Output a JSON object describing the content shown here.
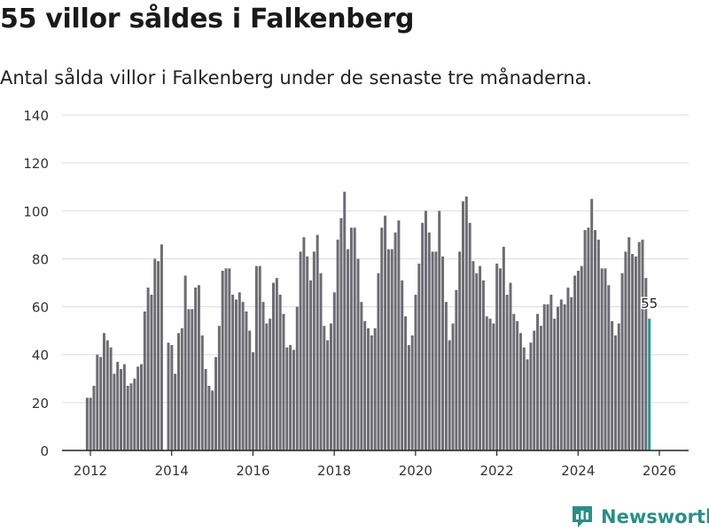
{
  "header": {
    "title": "55 villor såldes i Falkenberg",
    "subtitle": "Antal sålda villor i Falkenberg under de senaste tre månaderna."
  },
  "brand": {
    "name": "Newsworthy",
    "color": "#2a8f8a",
    "icon": "newsworthy-logo-icon"
  },
  "chart_data": {
    "type": "bar",
    "title": "55 villor såldes i Falkenberg",
    "subtitle": "Antal sålda villor i Falkenberg under de senaste tre månaderna.",
    "xlabel": "",
    "ylabel": "",
    "ylim": [
      0,
      140
    ],
    "yticks": [
      0,
      20,
      40,
      60,
      80,
      100,
      120,
      140
    ],
    "xticks": [
      "2012",
      "2014",
      "2016",
      "2018",
      "2020",
      "2022",
      "2024",
      "2026"
    ],
    "xlim": [
      2011.92,
      2026.0
    ],
    "bar_color": "#6d6c73",
    "highlight_color": "#2a9a8f",
    "highlight_label": "55",
    "grid": true,
    "x_start": 2011.92,
    "x_step": 0.08333,
    "values": [
      22,
      22,
      27,
      40,
      39,
      49,
      46,
      43,
      32,
      37,
      34,
      36,
      27,
      28,
      30,
      35,
      36,
      58,
      68,
      65,
      80,
      79,
      86,
      0,
      45,
      44,
      32,
      49,
      51,
      73,
      59,
      59,
      68,
      69,
      48,
      34,
      27,
      25,
      39,
      52,
      75,
      76,
      76,
      65,
      63,
      66,
      62,
      58,
      50,
      41,
      77,
      77,
      62,
      53,
      55,
      70,
      72,
      65,
      57,
      43,
      44,
      42,
      60,
      83,
      89,
      81,
      71,
      83,
      90,
      74,
      52,
      46,
      53,
      66,
      88,
      97,
      108,
      84,
      93,
      93,
      80,
      62,
      54,
      51,
      48,
      51,
      74,
      93,
      98,
      84,
      84,
      91,
      96,
      71,
      56,
      44,
      48,
      65,
      78,
      95,
      100,
      91,
      83,
      83,
      100,
      81,
      62,
      46,
      53,
      67,
      83,
      104,
      106,
      95,
      79,
      74,
      77,
      71,
      56,
      55,
      53,
      78,
      76,
      85,
      65,
      70,
      57,
      54,
      49,
      43,
      38,
      45,
      50,
      57,
      52,
      61,
      61,
      65,
      55,
      60,
      63,
      61,
      68,
      64,
      73,
      75,
      77,
      92,
      93,
      105,
      92,
      88,
      76,
      76,
      69,
      54,
      48,
      53,
      74,
      83,
      89,
      82,
      81,
      87,
      88,
      72,
      55
    ]
  }
}
